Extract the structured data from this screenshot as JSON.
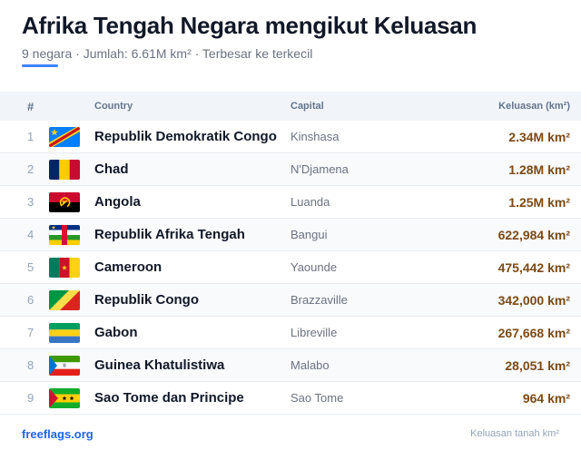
{
  "header": {
    "title": "Afrika Tengah Negara mengikut Keluasan",
    "subtitle": "9 negara · Jumlah: 6.61M km² · Terbesar ke terkecil"
  },
  "columns": {
    "num": "#",
    "country": "Country",
    "capital": "Capital",
    "area": "Keluasan (km²)"
  },
  "rows": [
    {
      "num": "1",
      "country": "Republik Demokratik Congo",
      "capital": "Kinshasa",
      "area": "2.34M km²",
      "flag": "dr-congo-flag-icon"
    },
    {
      "num": "2",
      "country": "Chad",
      "capital": "N'Djamena",
      "area": "1.28M km²",
      "flag": "chad-flag-icon"
    },
    {
      "num": "3",
      "country": "Angola",
      "capital": "Luanda",
      "area": "1.25M km²",
      "flag": "angola-flag-icon"
    },
    {
      "num": "4",
      "country": "Republik Afrika Tengah",
      "capital": "Bangui",
      "area": "622,984 km²",
      "flag": "central-african-republic-flag-icon"
    },
    {
      "num": "5",
      "country": "Cameroon",
      "capital": "Yaounde",
      "area": "475,442 km²",
      "flag": "cameroon-flag-icon"
    },
    {
      "num": "6",
      "country": "Republik Congo",
      "capital": "Brazzaville",
      "area": "342,000 km²",
      "flag": "republic-of-congo-flag-icon"
    },
    {
      "num": "7",
      "country": "Gabon",
      "capital": "Libreville",
      "area": "267,668 km²",
      "flag": "gabon-flag-icon"
    },
    {
      "num": "8",
      "country": "Guinea Khatulistiwa",
      "capital": "Malabo",
      "area": "28,051 km²",
      "flag": "equatorial-guinea-flag-icon"
    },
    {
      "num": "9",
      "country": "Sao Tome dan Principe",
      "capital": "Sao Tome",
      "area": "964 km²",
      "flag": "sao-tome-flag-icon"
    }
  ],
  "footer": {
    "source": "freeflags.org",
    "note": "Keluasan tanah km²"
  },
  "colors": {
    "accent": "#3b82f6",
    "area_text": "#7c4a14",
    "link": "#2563eb"
  }
}
